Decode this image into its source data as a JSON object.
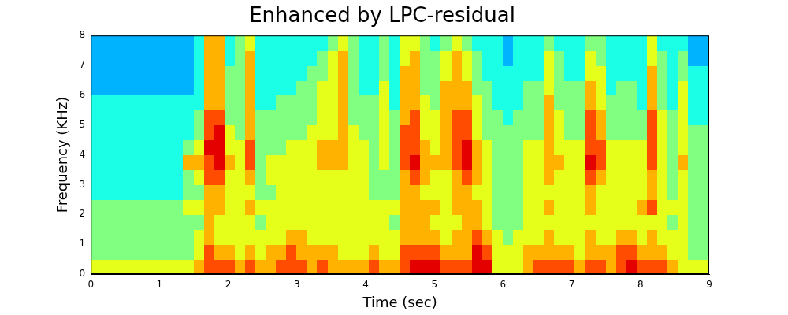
{
  "chart_data": {
    "type": "heatmap",
    "title": "Enhanced by LPC-residual",
    "x_label": "Time (sec)",
    "y_label": "Frequency (KHz)",
    "xlim": [
      0,
      9
    ],
    "ylim": [
      0,
      8
    ],
    "xticks": [
      0,
      1,
      2,
      3,
      4,
      5,
      6,
      7,
      8,
      9
    ],
    "yticks": [
      0,
      1,
      2,
      3,
      4,
      5,
      6,
      7,
      8
    ],
    "grid": false,
    "x_bins": [
      0,
      0.15,
      0.3,
      0.45,
      0.6,
      0.75,
      0.9,
      1.05,
      1.2,
      1.35,
      1.5,
      1.65,
      1.8,
      1.95,
      2.1,
      2.25,
      2.4,
      2.55,
      2.7,
      2.85,
      3,
      3.15,
      3.3,
      3.45,
      3.6,
      3.75,
      3.9,
      4.05,
      4.2,
      4.35,
      4.5,
      4.65,
      4.8,
      4.95,
      5.1,
      5.25,
      5.4,
      5.55,
      5.7,
      5.85,
      6,
      6.15,
      6.3,
      6.45,
      6.6,
      6.75,
      6.9,
      7.05,
      7.2,
      7.35,
      7.5,
      7.65,
      7.8,
      7.95,
      8.1,
      8.25,
      8.4,
      8.55,
      8.7,
      8.85,
      9
    ],
    "y_bins": [
      0,
      0.5,
      1,
      1.5,
      2,
      2.5,
      3,
      3.5,
      4,
      4.5,
      5,
      5.5,
      6,
      6.5,
      7,
      7.5,
      8
    ],
    "clim": [
      0,
      10
    ],
    "cells": [
      [
        6,
        5,
        5,
        5,
        5,
        4,
        4,
        4,
        4,
        4,
        4,
        4,
        3,
        3,
        3,
        3
      ],
      [
        6,
        5,
        5,
        5,
        5,
        4,
        4,
        4,
        4,
        4,
        4,
        4,
        3,
        3,
        3,
        3
      ],
      [
        6,
        5,
        5,
        5,
        5,
        4,
        4,
        4,
        4,
        4,
        4,
        4,
        3,
        3,
        3,
        3
      ],
      [
        6,
        5,
        5,
        5,
        5,
        4,
        4,
        4,
        4,
        4,
        4,
        4,
        3,
        3,
        3,
        3
      ],
      [
        6,
        5,
        5,
        5,
        5,
        4,
        4,
        4,
        4,
        4,
        4,
        4,
        3,
        3,
        3,
        3
      ],
      [
        6,
        5,
        5,
        5,
        5,
        4,
        4,
        4,
        4,
        4,
        4,
        4,
        3,
        3,
        3,
        3
      ],
      [
        6,
        5,
        5,
        5,
        5,
        4,
        4,
        4,
        4,
        4,
        4,
        4,
        3,
        3,
        3,
        3
      ],
      [
        6,
        5,
        5,
        5,
        5,
        4,
        4,
        4,
        4,
        4,
        4,
        4,
        3,
        3,
        3,
        3
      ],
      [
        6,
        5,
        5,
        5,
        5,
        4,
        4,
        4,
        4,
        4,
        4,
        4,
        3,
        3,
        3,
        3
      ],
      [
        6,
        5,
        5,
        5,
        6,
        5,
        5,
        7,
        5,
        4,
        4,
        4,
        3,
        3,
        3,
        3
      ],
      [
        7,
        6,
        6,
        5,
        6,
        5,
        6,
        7,
        6,
        5,
        5,
        4,
        4,
        4,
        4,
        4
      ],
      [
        8,
        8,
        7,
        7,
        7,
        7,
        8,
        8,
        9,
        8,
        8,
        7,
        7,
        7,
        7,
        7
      ],
      [
        8,
        7,
        6,
        6,
        7,
        7,
        8,
        9,
        9,
        9,
        8,
        7,
        7,
        7,
        7,
        7
      ],
      [
        8,
        7,
        6,
        6,
        6,
        6,
        6,
        7,
        6,
        6,
        5,
        5,
        5,
        5,
        4,
        4
      ],
      [
        7,
        6,
        6,
        6,
        6,
        6,
        6,
        6,
        6,
        5,
        5,
        5,
        5,
        5,
        5,
        5
      ],
      [
        8,
        7,
        6,
        6,
        7,
        6,
        7,
        8,
        8,
        7,
        7,
        7,
        7,
        7,
        7,
        6
      ],
      [
        7,
        6,
        6,
        5,
        6,
        5,
        5,
        5,
        5,
        5,
        5,
        4,
        4,
        4,
        4,
        4
      ],
      [
        7,
        7,
        6,
        6,
        6,
        5,
        6,
        6,
        5,
        5,
        5,
        4,
        4,
        4,
        4,
        4
      ],
      [
        8,
        7,
        6,
        6,
        6,
        6,
        6,
        6,
        5,
        5,
        5,
        5,
        4,
        4,
        4,
        4
      ],
      [
        8,
        8,
        7,
        6,
        6,
        6,
        6,
        6,
        6,
        5,
        5,
        5,
        4,
        4,
        4,
        4
      ],
      [
        8,
        7,
        7,
        6,
        6,
        6,
        6,
        6,
        6,
        5,
        5,
        5,
        5,
        4,
        4,
        4
      ],
      [
        7,
        7,
        6,
        6,
        6,
        6,
        6,
        6,
        6,
        6,
        5,
        5,
        5,
        5,
        4,
        4
      ],
      [
        8,
        7,
        6,
        6,
        6,
        6,
        6,
        7,
        7,
        6,
        6,
        6,
        6,
        5,
        5,
        4
      ],
      [
        7,
        7,
        6,
        6,
        6,
        6,
        6,
        7,
        7,
        6,
        6,
        6,
        6,
        6,
        6,
        5
      ],
      [
        7,
        6,
        6,
        6,
        6,
        6,
        6,
        7,
        7,
        7,
        7,
        7,
        7,
        7,
        7,
        6
      ],
      [
        7,
        6,
        6,
        6,
        6,
        6,
        6,
        6,
        6,
        6,
        5,
        5,
        5,
        5,
        5,
        5
      ],
      [
        7,
        6,
        6,
        6,
        6,
        6,
        6,
        6,
        6,
        5,
        5,
        5,
        4,
        4,
        4,
        4
      ],
      [
        8,
        7,
        6,
        6,
        6,
        5,
        5,
        5,
        5,
        5,
        5,
        5,
        4,
        4,
        4,
        4
      ],
      [
        7,
        6,
        6,
        6,
        6,
        5,
        5,
        6,
        6,
        6,
        6,
        6,
        6,
        5,
        5,
        5
      ],
      [
        7,
        6,
        6,
        5,
        6,
        5,
        5,
        5,
        5,
        5,
        5,
        4,
        4,
        4,
        4,
        4
      ],
      [
        8,
        8,
        7,
        7,
        7,
        7,
        7,
        8,
        8,
        8,
        7,
        7,
        7,
        7,
        6,
        6
      ],
      [
        9,
        8,
        7,
        7,
        7,
        7,
        8,
        9,
        8,
        8,
        8,
        7,
        7,
        7,
        7,
        6
      ],
      [
        9,
        8,
        7,
        7,
        7,
        6,
        7,
        7,
        7,
        6,
        6,
        6,
        5,
        5,
        5,
        5
      ],
      [
        9,
        8,
        7,
        6,
        7,
        6,
        6,
        7,
        6,
        6,
        6,
        5,
        5,
        5,
        5,
        4
      ],
      [
        8,
        7,
        6,
        6,
        6,
        6,
        6,
        7,
        7,
        7,
        7,
        7,
        7,
        6,
        6,
        5
      ],
      [
        8,
        7,
        7,
        6,
        7,
        7,
        7,
        8,
        8,
        8,
        8,
        7,
        7,
        7,
        7,
        6
      ],
      [
        8,
        7,
        7,
        7,
        7,
        7,
        8,
        9,
        9,
        8,
        8,
        7,
        7,
        6,
        6,
        5
      ],
      [
        9,
        9,
        8,
        7,
        7,
        6,
        7,
        7,
        7,
        6,
        6,
        6,
        5,
        5,
        5,
        4
      ],
      [
        9,
        8,
        7,
        6,
        6,
        6,
        6,
        6,
        6,
        5,
        5,
        5,
        5,
        4,
        4,
        4
      ],
      [
        6,
        6,
        6,
        5,
        5,
        5,
        5,
        5,
        5,
        5,
        5,
        4,
        4,
        4,
        4,
        4
      ],
      [
        6,
        6,
        5,
        5,
        5,
        5,
        5,
        5,
        5,
        5,
        4,
        4,
        4,
        4,
        3,
        3
      ],
      [
        6,
        6,
        6,
        5,
        5,
        5,
        5,
        5,
        5,
        5,
        5,
        4,
        4,
        4,
        4,
        4
      ],
      [
        7,
        7,
        6,
        6,
        6,
        6,
        6,
        6,
        6,
        5,
        5,
        5,
        5,
        4,
        4,
        4
      ],
      [
        8,
        7,
        6,
        6,
        6,
        6,
        6,
        6,
        6,
        5,
        5,
        5,
        5,
        4,
        4,
        4
      ],
      [
        8,
        7,
        7,
        6,
        7,
        6,
        7,
        7,
        7,
        7,
        7,
        7,
        6,
        6,
        6,
        5
      ],
      [
        8,
        7,
        6,
        6,
        6,
        6,
        6,
        7,
        6,
        6,
        6,
        5,
        5,
        5,
        5,
        4
      ],
      [
        8,
        7,
        6,
        6,
        6,
        6,
        6,
        6,
        6,
        5,
        5,
        5,
        5,
        4,
        4,
        4
      ],
      [
        7,
        6,
        6,
        6,
        6,
        6,
        6,
        6,
        6,
        5,
        5,
        5,
        5,
        4,
        4,
        4
      ],
      [
        8,
        7,
        7,
        6,
        7,
        7,
        8,
        9,
        8,
        8,
        8,
        7,
        7,
        6,
        6,
        5
      ],
      [
        8,
        7,
        6,
        6,
        6,
        6,
        7,
        8,
        8,
        7,
        7,
        6,
        6,
        6,
        5,
        5
      ],
      [
        7,
        7,
        6,
        6,
        6,
        6,
        6,
        6,
        6,
        5,
        5,
        5,
        4,
        4,
        4,
        4
      ],
      [
        8,
        8,
        7,
        6,
        6,
        6,
        6,
        6,
        6,
        5,
        5,
        5,
        5,
        4,
        4,
        4
      ],
      [
        9,
        8,
        7,
        6,
        6,
        6,
        6,
        6,
        6,
        5,
        5,
        5,
        5,
        4,
        4,
        4
      ],
      [
        8,
        7,
        6,
        6,
        7,
        6,
        6,
        6,
        6,
        5,
        5,
        4,
        4,
        4,
        4,
        4
      ],
      [
        8,
        7,
        7,
        6,
        8,
        7,
        7,
        8,
        8,
        8,
        8,
        7,
        7,
        7,
        6,
        6
      ],
      [
        8,
        7,
        6,
        6,
        6,
        6,
        6,
        6,
        6,
        6,
        6,
        5,
        5,
        5,
        5,
        4
      ],
      [
        7,
        6,
        6,
        5,
        6,
        5,
        5,
        5,
        5,
        5,
        5,
        4,
        4,
        4,
        4,
        4
      ],
      [
        6,
        6,
        6,
        6,
        6,
        6,
        6,
        7,
        6,
        6,
        6,
        6,
        6,
        5,
        5,
        4
      ],
      [
        6,
        5,
        5,
        5,
        5,
        5,
        5,
        5,
        5,
        5,
        4,
        4,
        4,
        4,
        3,
        3
      ],
      [
        6,
        5,
        5,
        5,
        5,
        5,
        5,
        5,
        5,
        5,
        4,
        4,
        4,
        4,
        3,
        3
      ]
    ]
  }
}
